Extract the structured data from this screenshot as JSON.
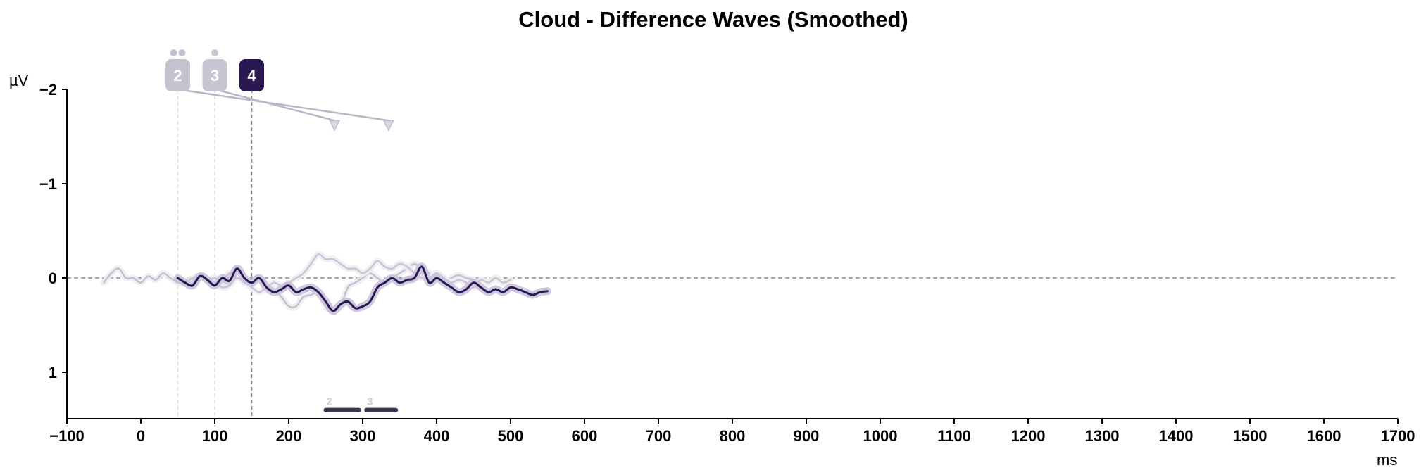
{
  "chart_data": {
    "type": "line",
    "title": "Cloud - Difference Waves (Smoothed)",
    "xlabel": "ms",
    "ylabel": "µV",
    "xlim": [
      -100,
      1700
    ],
    "ylim": [
      -2,
      1.5
    ],
    "y_inverted": true,
    "xticks": [
      -100,
      0,
      100,
      200,
      300,
      400,
      500,
      600,
      700,
      800,
      900,
      1000,
      1100,
      1200,
      1300,
      1400,
      1500,
      1600,
      1700
    ],
    "yticks": [
      -2,
      -1,
      0,
      1
    ],
    "grid": false,
    "zero_line": "dashed",
    "colors": {
      "series_2": "#c4c2cf",
      "series_3": "#c8c6d2",
      "series_4": "#2a1850",
      "axis": "#000000",
      "zero_line": "#888888"
    },
    "series": [
      {
        "name": "2",
        "onset": 50,
        "x": [
          -50,
          -40,
          -30,
          -20,
          -10,
          0,
          10,
          20,
          30,
          40,
          50,
          60,
          70,
          80,
          90,
          100,
          110,
          120,
          130,
          140,
          150,
          160,
          170,
          180,
          190,
          200,
          210,
          220,
          230,
          240,
          250,
          260,
          270,
          280,
          290,
          300,
          310,
          320,
          330,
          340,
          350,
          360,
          370,
          380,
          390,
          400,
          410,
          420,
          430,
          440,
          450
        ],
        "y": [
          0.05,
          -0.05,
          -0.1,
          0.0,
          0.0,
          0.05,
          -0.02,
          0.02,
          -0.05,
          0.0,
          0.05,
          0.05,
          0.0,
          -0.02,
          0.02,
          0.0,
          0.03,
          -0.05,
          0.0,
          0.02,
          0.05,
          0.0,
          0.08,
          0.12,
          0.2,
          0.3,
          0.3,
          0.2,
          0.18,
          0.15,
          0.3,
          0.35,
          0.3,
          0.1,
          0.05,
          0.0,
          -0.05,
          0.0,
          0.05,
          0.0,
          -0.05,
          -0.1,
          -0.15,
          -0.1,
          -0.05,
          0.0,
          0.05,
          0.0,
          -0.03,
          0.0,
          0.02
        ]
      },
      {
        "name": "3",
        "onset": 100,
        "x": [
          100,
          110,
          120,
          130,
          140,
          150,
          160,
          170,
          180,
          190,
          200,
          210,
          220,
          230,
          240,
          250,
          260,
          270,
          280,
          290,
          300,
          310,
          320,
          330,
          340,
          350,
          360,
          370,
          380,
          390,
          400,
          410,
          420,
          430,
          440,
          450,
          460,
          470,
          480,
          490,
          500
        ],
        "y": [
          0.05,
          0.1,
          0.08,
          0.0,
          0.05,
          0.1,
          0.15,
          0.1,
          0.05,
          0.08,
          0.05,
          0.0,
          -0.05,
          -0.15,
          -0.25,
          -0.2,
          -0.2,
          -0.15,
          -0.1,
          -0.1,
          -0.05,
          -0.1,
          -0.18,
          -0.12,
          -0.1,
          -0.15,
          -0.12,
          -0.05,
          0.0,
          0.0,
          -0.05,
          0.0,
          0.05,
          0.02,
          0.05,
          0.1,
          0.02,
          0.05,
          0.0,
          0.05,
          0.02
        ]
      },
      {
        "name": "4",
        "onset": 150,
        "x": [
          50,
          60,
          70,
          80,
          90,
          100,
          110,
          120,
          130,
          140,
          150,
          160,
          170,
          180,
          190,
          200,
          210,
          220,
          230,
          240,
          250,
          260,
          270,
          280,
          290,
          300,
          310,
          320,
          330,
          340,
          350,
          360,
          370,
          380,
          390,
          400,
          410,
          420,
          430,
          440,
          450,
          460,
          470,
          480,
          490,
          500,
          510,
          520,
          530,
          540,
          550
        ],
        "y": [
          0.0,
          0.05,
          0.08,
          -0.02,
          0.02,
          0.08,
          0.0,
          0.03,
          -0.1,
          0.0,
          0.05,
          0.0,
          0.1,
          0.15,
          0.12,
          0.08,
          0.15,
          0.12,
          0.1,
          0.15,
          0.25,
          0.35,
          0.28,
          0.25,
          0.32,
          0.3,
          0.25,
          0.1,
          0.05,
          0.0,
          0.05,
          0.02,
          0.0,
          -0.12,
          0.05,
          0.0,
          0.05,
          0.1,
          0.15,
          0.12,
          0.05,
          0.1,
          0.15,
          0.12,
          0.15,
          0.1,
          0.12,
          0.15,
          0.18,
          0.15,
          0.14
        ]
      }
    ],
    "markers": [
      {
        "label": "2",
        "x": 50,
        "dots": 2,
        "color": "#c4c2cf",
        "arrow_to": [
          335,
          -1.67
        ]
      },
      {
        "label": "3",
        "x": 100,
        "dots": 1,
        "color": "#c8c6d2",
        "arrow_to": [
          262,
          -1.67
        ]
      },
      {
        "label": "4",
        "x": 150,
        "dots": 0,
        "color": "#2a1850",
        "arrow_to": null
      }
    ],
    "significance": [
      {
        "label": "2",
        "x_start": 250,
        "x_end": 295,
        "y": 1.4
      },
      {
        "label": "3",
        "x_start": 305,
        "x_end": 345,
        "y": 1.4
      }
    ]
  }
}
